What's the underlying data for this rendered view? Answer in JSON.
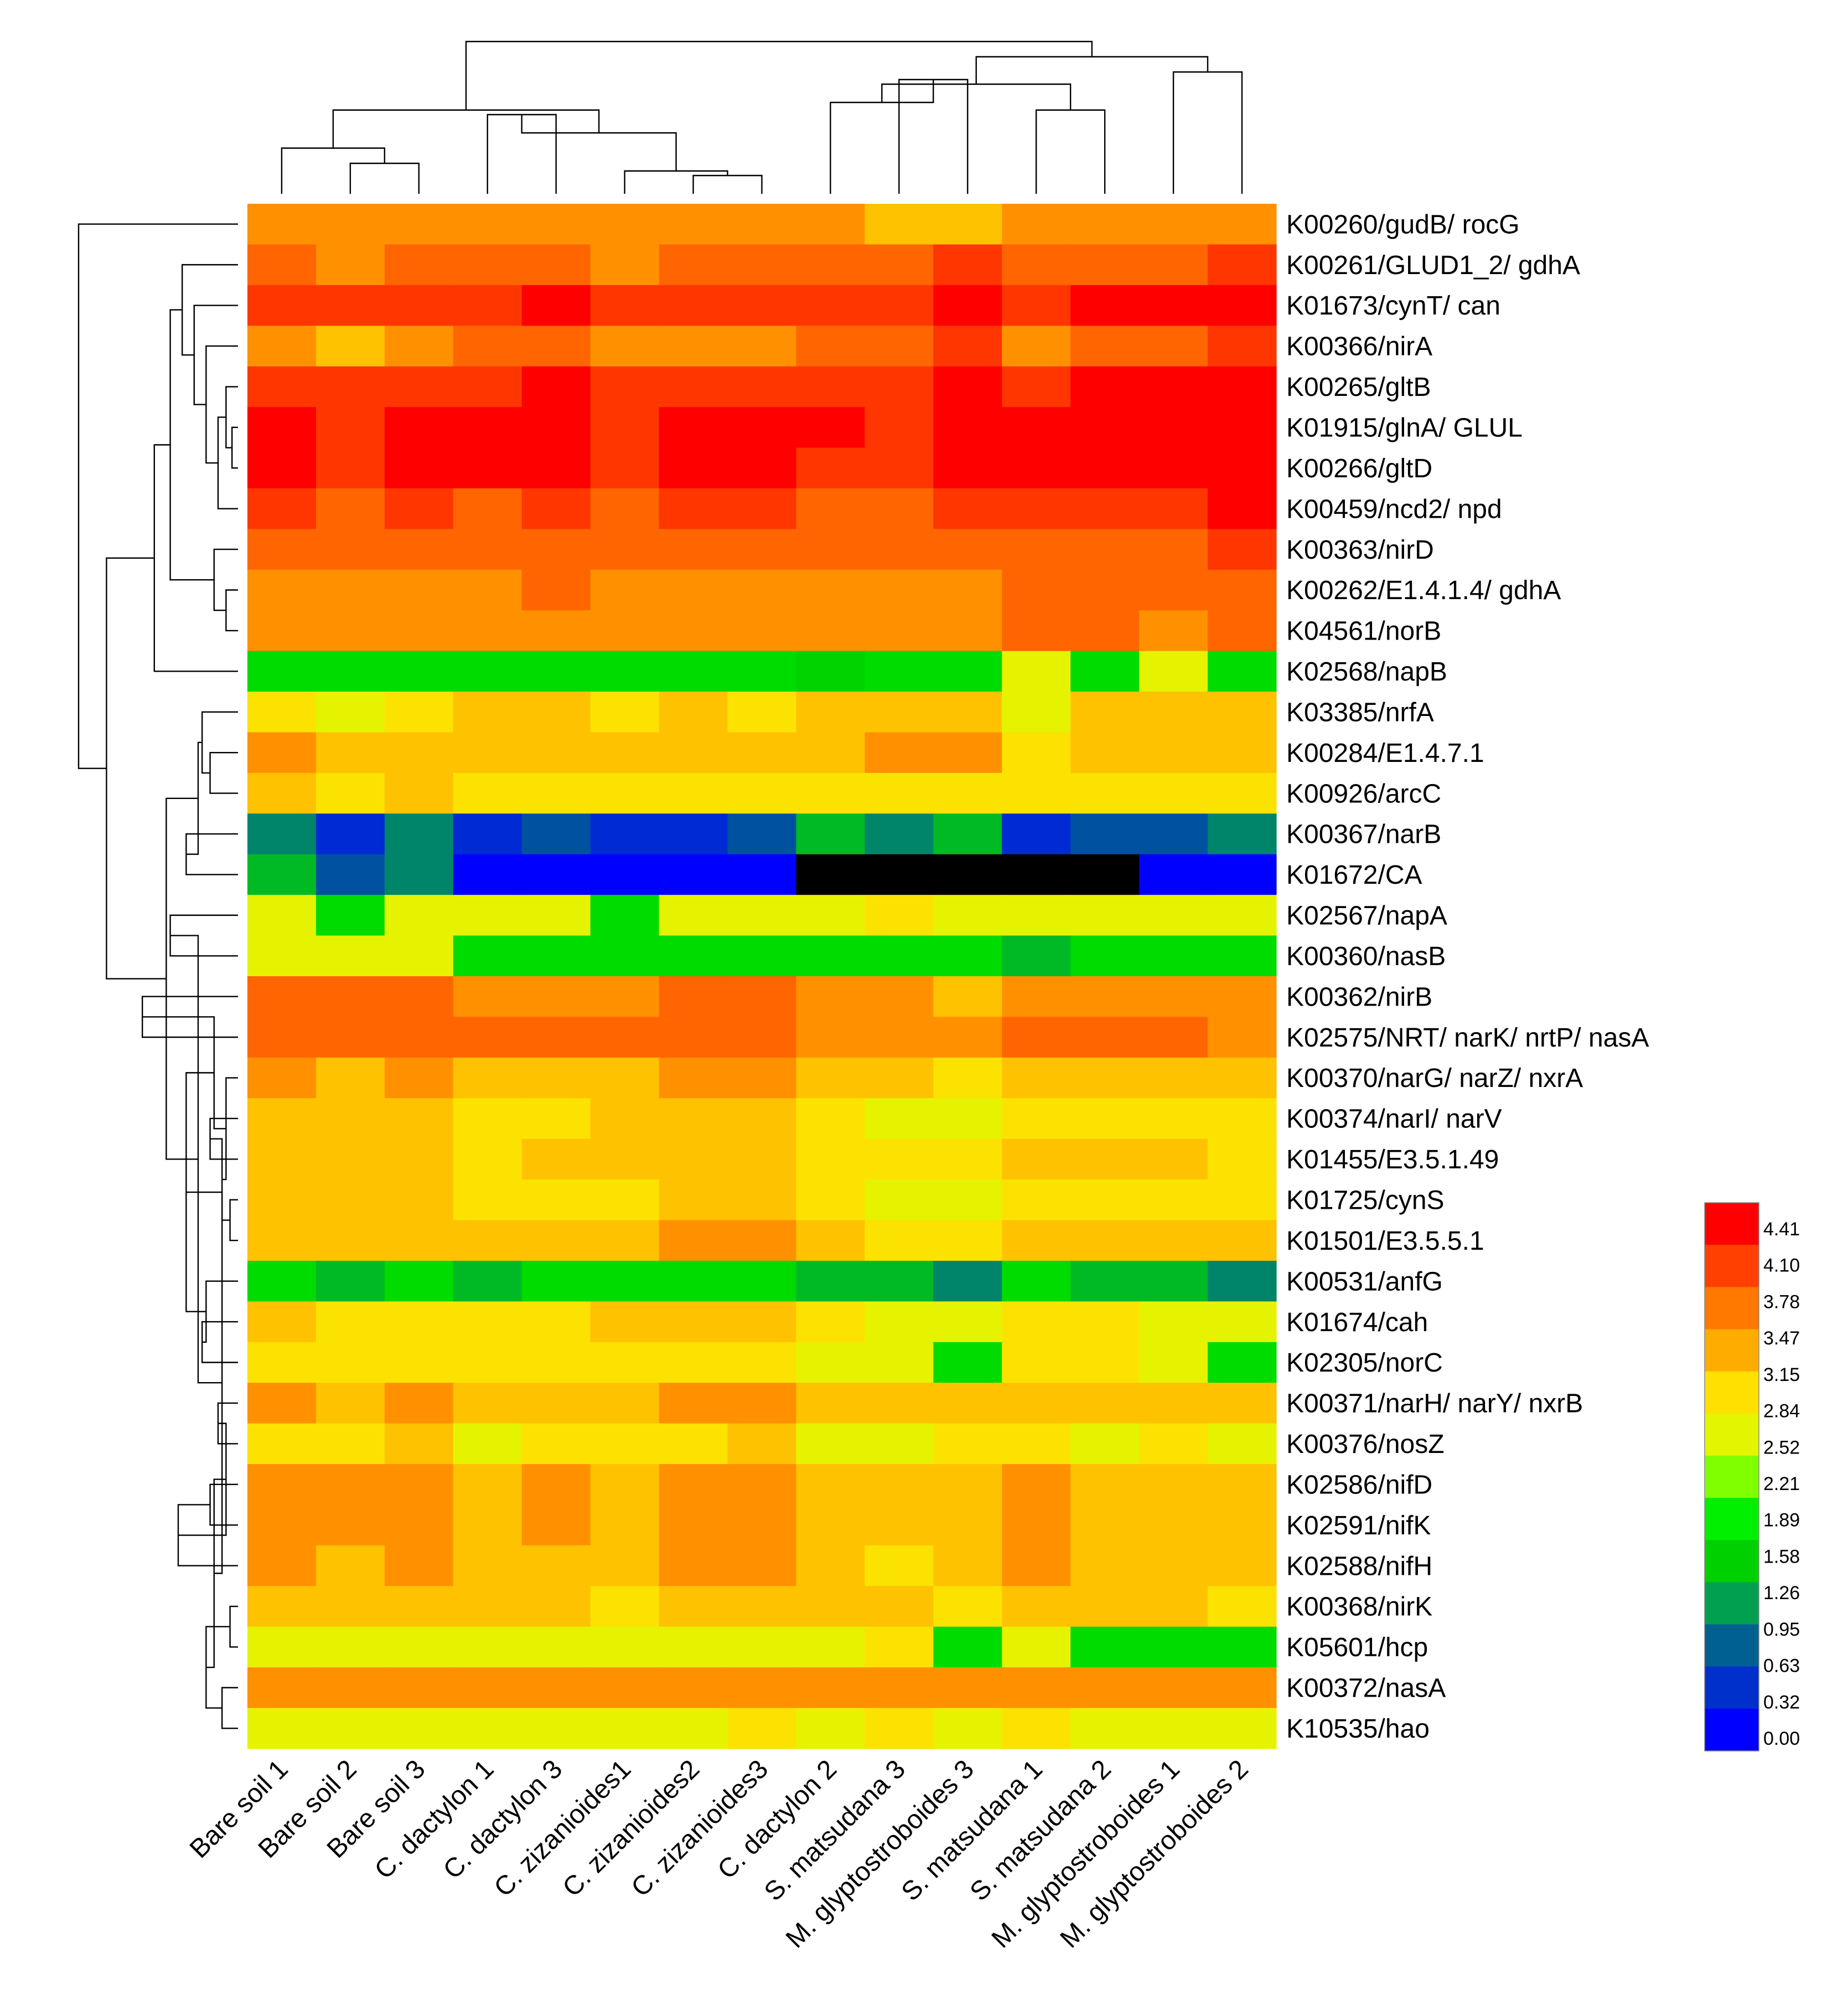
{
  "chart_data": {
    "type": "heatmap",
    "columns": [
      "Bare soil 1",
      "Bare soil 2",
      "Bare soil 3",
      "C. dactylon 1",
      "C. dactylon 3",
      "C. zizanioides1",
      "C. zizanioides2",
      "C. zizanioides3",
      "C. dactylon 2",
      "S. matsudana 3",
      "M. glyptostroboides 3",
      "S. matsudana 1",
      "S. matsudana 2",
      "M. glyptostroboides 1",
      "M. glyptostroboides 2"
    ],
    "rows": [
      "K00260/gudB/ rocG",
      "K00261/GLUD1_2/ gdhA",
      "K01673/cynT/ can",
      "K00366/nirA",
      "K00265/gltB",
      "K01915/glnA/ GLUL",
      "K00266/gltD",
      "K00459/ncd2/ npd",
      "K00363/nirD",
      "K00262/E1.4.1.4/ gdhA",
      "K04561/norB",
      "K02568/napB",
      "K03385/nrfA",
      "K00284/E1.4.7.1",
      "K00926/arcC",
      "K00367/narB",
      "K01672/CA",
      "K02567/napA",
      "K00360/nasB",
      "K00362/nirB",
      "K02575/NRT/ narK/ nrtP/ nasA",
      "K00370/narG/ narZ/ nxrA",
      "K00374/narI/ narV",
      "K01455/E3.5.1.49",
      "K01725/cynS",
      "K01501/E3.5.5.1",
      "K00531/anfG",
      "K01674/cah",
      "K02305/norC",
      "K00371/narH/ narY/ nxrB",
      "K00376/nosZ",
      "K02586/nifD",
      "K02591/nifK",
      "K02588/nifH",
      "K00368/nirK",
      "K05601/hcp",
      "K00372/nasA",
      "K10535/hao"
    ],
    "values": [
      [
        3.5,
        3.5,
        3.5,
        3.5,
        3.5,
        3.5,
        3.5,
        3.5,
        3.5,
        3.15,
        3.15,
        3.5,
        3.5,
        3.5,
        3.5
      ],
      [
        3.8,
        3.5,
        3.8,
        3.8,
        3.8,
        3.5,
        3.8,
        3.8,
        3.8,
        3.8,
        4.1,
        3.8,
        3.8,
        3.8,
        4.1
      ],
      [
        4.1,
        4.1,
        4.1,
        4.1,
        4.41,
        4.1,
        4.1,
        4.1,
        4.1,
        4.1,
        4.41,
        4.1,
        4.41,
        4.41,
        4.41
      ],
      [
        3.5,
        3.15,
        3.5,
        3.8,
        3.8,
        3.5,
        3.5,
        3.5,
        3.8,
        3.8,
        4.1,
        3.5,
        3.8,
        3.8,
        4.1
      ],
      [
        4.1,
        4.1,
        4.1,
        4.1,
        4.41,
        4.1,
        4.1,
        4.1,
        4.1,
        4.1,
        4.41,
        4.1,
        4.41,
        4.41,
        4.41
      ],
      [
        4.41,
        4.1,
        4.41,
        4.41,
        4.41,
        4.1,
        4.41,
        4.41,
        4.41,
        4.1,
        4.41,
        4.41,
        4.41,
        4.41,
        4.41
      ],
      [
        4.41,
        4.1,
        4.41,
        4.41,
        4.41,
        4.1,
        4.41,
        4.41,
        4.1,
        4.1,
        4.41,
        4.41,
        4.41,
        4.41,
        4.41
      ],
      [
        4.1,
        3.8,
        4.1,
        3.8,
        4.1,
        3.8,
        4.1,
        4.1,
        3.8,
        3.8,
        4.1,
        4.1,
        4.1,
        4.1,
        4.41
      ],
      [
        3.8,
        3.8,
        3.8,
        3.8,
        3.8,
        3.8,
        3.8,
        3.8,
        3.8,
        3.8,
        3.8,
        3.8,
        3.8,
        3.8,
        4.1
      ],
      [
        3.5,
        3.5,
        3.5,
        3.5,
        3.8,
        3.5,
        3.5,
        3.5,
        3.5,
        3.5,
        3.5,
        3.8,
        3.8,
        3.8,
        3.8
      ],
      [
        3.5,
        3.5,
        3.5,
        3.5,
        3.5,
        3.5,
        3.5,
        3.5,
        3.5,
        3.5,
        3.5,
        3.8,
        3.8,
        3.5,
        3.8
      ],
      [
        1.6,
        1.6,
        1.6,
        1.6,
        1.6,
        1.6,
        1.6,
        1.6,
        1.5,
        1.6,
        1.6,
        2.6,
        1.6,
        2.6,
        1.6
      ],
      [
        2.9,
        2.6,
        2.9,
        3.15,
        3.15,
        2.9,
        3.15,
        2.9,
        3.15,
        3.15,
        3.15,
        2.6,
        3.15,
        3.15,
        3.15
      ],
      [
        3.5,
        3.15,
        3.15,
        3.15,
        3.15,
        3.15,
        3.15,
        3.15,
        3.15,
        3.5,
        3.5,
        2.9,
        3.15,
        3.15,
        3.15
      ],
      [
        3.15,
        2.9,
        3.15,
        2.9,
        2.9,
        2.9,
        2.9,
        2.9,
        2.9,
        2.9,
        2.9,
        2.9,
        2.9,
        2.9,
        2.9
      ],
      [
        0.95,
        0.32,
        0.95,
        0.32,
        0.63,
        0.32,
        0.32,
        0.63,
        1.3,
        0.95,
        1.3,
        0.32,
        0.63,
        0.63,
        0.95
      ],
      [
        1.3,
        0.63,
        0.95,
        0.0,
        0.0,
        0.0,
        0.0,
        0.0,
        null,
        null,
        null,
        null,
        null,
        0.0,
        0.0
      ],
      [
        2.6,
        1.6,
        2.6,
        2.6,
        2.6,
        1.6,
        2.6,
        2.6,
        2.6,
        2.9,
        2.6,
        2.6,
        2.6,
        2.6,
        2.6
      ],
      [
        2.6,
        2.6,
        2.6,
        1.6,
        1.6,
        1.6,
        1.6,
        1.6,
        1.6,
        1.6,
        1.6,
        1.3,
        1.6,
        1.6,
        1.6
      ],
      [
        3.8,
        3.8,
        3.8,
        3.5,
        3.5,
        3.5,
        3.8,
        3.8,
        3.5,
        3.5,
        3.15,
        3.5,
        3.5,
        3.5,
        3.5
      ],
      [
        3.8,
        3.8,
        3.8,
        3.8,
        3.8,
        3.8,
        3.8,
        3.8,
        3.5,
        3.5,
        3.5,
        3.8,
        3.8,
        3.8,
        3.5
      ],
      [
        3.5,
        3.15,
        3.5,
        3.15,
        3.15,
        3.15,
        3.5,
        3.5,
        3.15,
        3.15,
        2.9,
        3.15,
        3.15,
        3.15,
        3.15
      ],
      [
        3.15,
        3.15,
        3.15,
        2.9,
        2.9,
        3.15,
        3.15,
        3.15,
        2.9,
        2.6,
        2.6,
        2.9,
        2.9,
        2.9,
        2.9
      ],
      [
        3.15,
        3.15,
        3.15,
        2.9,
        3.15,
        3.15,
        3.15,
        3.15,
        2.9,
        2.9,
        2.9,
        3.15,
        3.15,
        3.15,
        2.9
      ],
      [
        3.15,
        3.15,
        3.15,
        2.9,
        2.9,
        2.9,
        3.15,
        3.15,
        2.9,
        2.6,
        2.6,
        2.9,
        2.9,
        2.9,
        2.9
      ],
      [
        3.15,
        3.15,
        3.15,
        3.15,
        3.15,
        3.15,
        3.5,
        3.5,
        3.15,
        2.9,
        2.9,
        3.15,
        3.15,
        3.15,
        3.15
      ],
      [
        1.6,
        1.3,
        1.6,
        1.3,
        1.6,
        1.6,
        1.6,
        1.6,
        1.3,
        1.3,
        0.95,
        1.6,
        1.3,
        1.3,
        0.95
      ],
      [
        3.15,
        2.9,
        2.9,
        2.9,
        2.9,
        3.15,
        3.15,
        3.15,
        2.9,
        2.6,
        2.6,
        2.9,
        2.9,
        2.6,
        2.6
      ],
      [
        2.9,
        2.9,
        2.9,
        2.9,
        2.9,
        2.9,
        2.9,
        2.9,
        2.6,
        2.6,
        1.6,
        2.9,
        2.9,
        2.6,
        1.6
      ],
      [
        3.5,
        3.15,
        3.5,
        3.15,
        3.15,
        3.15,
        3.5,
        3.5,
        3.15,
        3.15,
        3.15,
        3.15,
        3.15,
        3.15,
        3.15
      ],
      [
        2.9,
        2.9,
        3.15,
        2.6,
        2.9,
        2.9,
        2.9,
        3.15,
        2.6,
        2.6,
        2.9,
        2.9,
        2.6,
        2.9,
        2.6
      ],
      [
        3.5,
        3.5,
        3.5,
        3.15,
        3.5,
        3.15,
        3.5,
        3.5,
        3.15,
        3.15,
        3.15,
        3.5,
        3.15,
        3.15,
        3.15
      ],
      [
        3.5,
        3.5,
        3.5,
        3.15,
        3.5,
        3.15,
        3.5,
        3.5,
        3.15,
        3.15,
        3.15,
        3.5,
        3.15,
        3.15,
        3.15
      ],
      [
        3.5,
        3.15,
        3.5,
        3.15,
        3.15,
        3.15,
        3.5,
        3.5,
        3.15,
        2.9,
        3.15,
        3.5,
        3.15,
        3.15,
        3.15
      ],
      [
        3.15,
        3.15,
        3.15,
        3.15,
        3.15,
        2.9,
        3.15,
        3.15,
        3.15,
        3.15,
        2.9,
        3.15,
        3.15,
        3.15,
        2.9
      ],
      [
        2.6,
        2.6,
        2.6,
        2.6,
        2.6,
        2.6,
        2.6,
        2.6,
        2.6,
        2.9,
        1.6,
        2.6,
        1.6,
        1.6,
        1.6
      ],
      [
        3.5,
        3.5,
        3.5,
        3.5,
        3.5,
        3.5,
        3.5,
        3.5,
        3.5,
        3.5,
        3.5,
        3.5,
        3.5,
        3.5,
        3.5
      ],
      [
        2.6,
        2.6,
        2.6,
        2.6,
        2.6,
        2.6,
        2.6,
        2.9,
        2.6,
        2.9,
        2.6,
        2.9,
        2.6,
        2.6,
        2.6
      ]
    ],
    "missing_color": "#000000",
    "color_scale": {
      "ticks": [
        "4.41",
        "4.10",
        "3.78",
        "3.47",
        "3.15",
        "2.84",
        "2.52",
        "2.21",
        "1.89",
        "1.58",
        "1.26",
        "0.95",
        "0.63",
        "0.32",
        "0.00"
      ],
      "range": [
        0.0,
        4.41
      ],
      "colors": [
        "#ff0000",
        "#ff4000",
        "#ff7800",
        "#ffac00",
        "#ffe000",
        "#e4f500",
        "#80ff00",
        "#00f000",
        "#00d000",
        "#00a050",
        "#006090",
        "#0030cc",
        "#0000ff"
      ]
    },
    "row_dendrogram": true,
    "col_dendrogram": true,
    "legend": "right"
  }
}
